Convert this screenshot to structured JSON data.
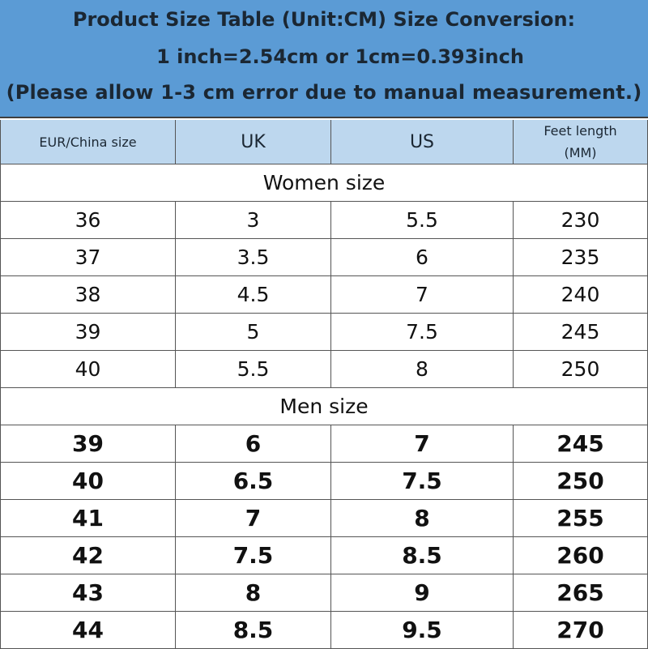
{
  "banner": {
    "line1": "Product Size Table (Unit:CM)  Size Conversion:",
    "line2": "1 inch=2.54cm or 1cm=0.393inch",
    "line3": "(Please allow 1-3 cm error due to manual measurement.)"
  },
  "headers": {
    "eur": "EUR/China  size",
    "uk": "UK",
    "us": "US",
    "feet_line1": "Feet length",
    "feet_line2": "(MM)"
  },
  "women": {
    "label": "Women size",
    "rows": [
      [
        "36",
        "3",
        "5.5",
        "230"
      ],
      [
        "37",
        "3.5",
        "6",
        "235"
      ],
      [
        "38",
        "4.5",
        "7",
        "240"
      ],
      [
        "39",
        "5",
        "7.5",
        "245"
      ],
      [
        "40",
        "5.5",
        "8",
        "250"
      ]
    ]
  },
  "men": {
    "label": "Men size",
    "rows": [
      [
        "39",
        "6",
        "7",
        "245"
      ],
      [
        "40",
        "6.5",
        "7.5",
        "250"
      ],
      [
        "41",
        "7",
        "8",
        "255"
      ],
      [
        "42",
        "7.5",
        "8.5",
        "260"
      ],
      [
        "43",
        "8",
        "9",
        "265"
      ],
      [
        "44",
        "8.5",
        "9.5",
        "270"
      ]
    ]
  },
  "colors": {
    "banner_bg": "#5b9bd5",
    "header_bg": "#bdd7ee",
    "border": "#555555"
  }
}
